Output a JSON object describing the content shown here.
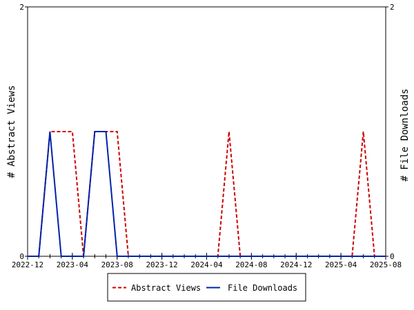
{
  "chart_data": {
    "type": "line",
    "xlabel": "",
    "ylabel_left": "# Abstract Views",
    "ylabel_right": "# File Downloads",
    "x_ticks": [
      "2022-12",
      "2023-04",
      "2023-08",
      "2023-12",
      "2024-04",
      "2024-08",
      "2024-12",
      "2025-04",
      "2025-08"
    ],
    "x_range": [
      "2022-12",
      "2025-08"
    ],
    "y_range": [
      0,
      2
    ],
    "y_ticks": [
      0,
      2
    ],
    "grid": false,
    "legend_position": "bottom",
    "series": [
      {
        "name": "Abstract Views",
        "color": "#cc0000",
        "style": "dashed",
        "axis": "left",
        "x": [
          "2022-12",
          "2023-01",
          "2023-02",
          "2023-03",
          "2023-04",
          "2023-05",
          "2023-06",
          "2023-07",
          "2023-08",
          "2023-09",
          "2023-10",
          "2023-11",
          "2023-12",
          "2024-01",
          "2024-02",
          "2024-03",
          "2024-04",
          "2024-05",
          "2024-06",
          "2024-07",
          "2024-08",
          "2024-09",
          "2024-10",
          "2024-11",
          "2024-12",
          "2025-01",
          "2025-02",
          "2025-03",
          "2025-04",
          "2025-05",
          "2025-06",
          "2025-07",
          "2025-08"
        ],
        "values": [
          0,
          0,
          1,
          1,
          1,
          0,
          1,
          1,
          1,
          0,
          0,
          0,
          0,
          0,
          0,
          0,
          0,
          0,
          1,
          0,
          0,
          0,
          0,
          0,
          0,
          0,
          0,
          0,
          0,
          0,
          1,
          0,
          0
        ]
      },
      {
        "name": "File Downloads",
        "color": "#0022aa",
        "style": "solid",
        "axis": "right",
        "x": [
          "2022-12",
          "2023-01",
          "2023-02",
          "2023-03",
          "2023-04",
          "2023-05",
          "2023-06",
          "2023-07",
          "2023-08",
          "2023-09",
          "2023-10",
          "2023-11",
          "2023-12",
          "2024-01",
          "2024-02",
          "2024-03",
          "2024-04",
          "2024-05",
          "2024-06",
          "2024-07",
          "2024-08",
          "2024-09",
          "2024-10",
          "2024-11",
          "2024-12",
          "2025-01",
          "2025-02",
          "2025-03",
          "2025-04",
          "2025-05",
          "2025-06",
          "2025-07",
          "2025-08"
        ],
        "values": [
          0,
          0,
          1,
          0,
          0,
          0,
          1,
          1,
          0,
          0,
          0,
          0,
          0,
          0,
          0,
          0,
          0,
          0,
          0,
          0,
          0,
          0,
          0,
          0,
          0,
          0,
          0,
          0,
          0,
          0,
          0,
          0,
          0
        ]
      }
    ]
  }
}
